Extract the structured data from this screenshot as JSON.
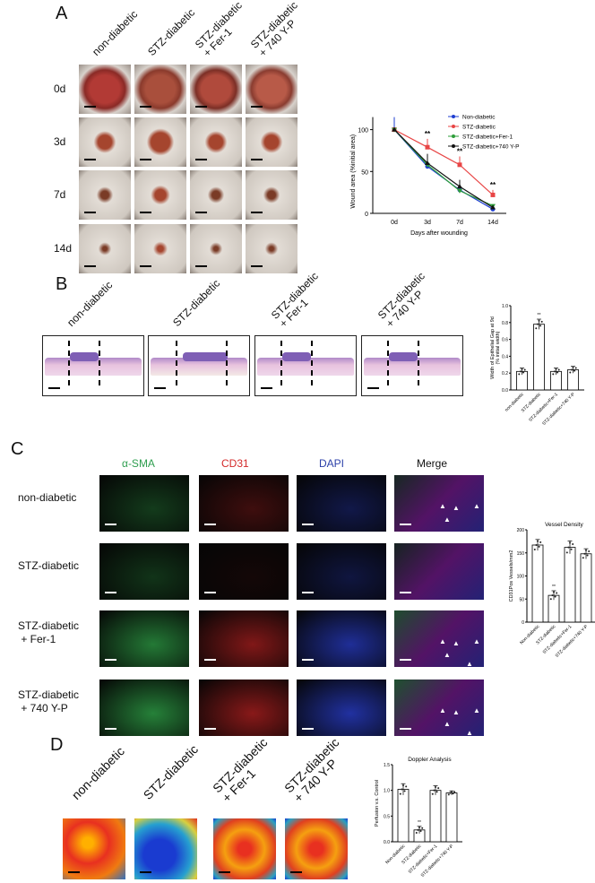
{
  "panels": {
    "A": {
      "label": "A",
      "columns": [
        "non-diabetic",
        "STZ-diabetic",
        "STZ-diabetic\n+ Fer-1",
        "STZ-diabetic\n+ 740 Y-P"
      ],
      "rows": [
        "0d",
        "3d",
        "7d",
        "14d"
      ]
    },
    "B": {
      "label": "B",
      "columns": [
        "non-diabetic",
        "STZ-diabetic",
        "STZ-diabetic\n+ Fer-1",
        "STZ-diabetic\n+ 740 Y-P"
      ]
    },
    "C": {
      "label": "C",
      "channels": [
        {
          "name": "α-SMA",
          "color": "#2e9e4f"
        },
        {
          "name": "CD31",
          "color": "#d42a2a"
        },
        {
          "name": "DAPI",
          "color": "#2b3fa8"
        },
        {
          "name": "Merge",
          "color": "#111111"
        }
      ],
      "rows": [
        "non-diabetic",
        "STZ-diabetic",
        "STZ-diabetic\n + Fer-1",
        "STZ-diabetic\n + 740 Y-P"
      ]
    },
    "D": {
      "label": "D",
      "columns": [
        "non-diabetic",
        "STZ-diabetic",
        "STZ-diabetic\n+ Fer-1",
        "STZ-diabetic\n+ 740 Y-P"
      ]
    }
  },
  "chart_data": [
    {
      "id": "A",
      "type": "line",
      "title": "",
      "xlabel": "Days after wounding",
      "ylabel": "Wound area (%initial area)",
      "categories": [
        "0d",
        "3d",
        "7d",
        "14d"
      ],
      "ylim": [
        0,
        115
      ],
      "yticks": [
        0,
        50,
        100
      ],
      "legend": "top-right",
      "annotations": [
        "**",
        "**",
        "**"
      ],
      "series": [
        {
          "name": "Non-diabetic",
          "color": "#1f3fd1",
          "marker": "circle",
          "values": [
            100,
            56,
            28,
            5
          ],
          "err": [
            15,
            10,
            4,
            2
          ]
        },
        {
          "name": "STZ-diabetic",
          "color": "#e84545",
          "marker": "square",
          "values": [
            100,
            79,
            58,
            22
          ],
          "err": [
            0,
            10,
            10,
            6
          ]
        },
        {
          "name": "STZ-diabetic+Fer-1",
          "color": "#2e9e3a",
          "marker": "triangle-down",
          "values": [
            100,
            58,
            27,
            9
          ],
          "err": [
            0,
            12,
            6,
            2
          ]
        },
        {
          "name": "STZ-diabetic+740 Y-P",
          "color": "#111111",
          "marker": "triangle-up",
          "values": [
            100,
            60,
            32,
            7
          ],
          "err": [
            0,
            11,
            8,
            2
          ]
        }
      ]
    },
    {
      "id": "B",
      "type": "bar",
      "title": "",
      "ylabel": "Width of Epithelial Gap at 9d\n(% initial width)",
      "categories": [
        "non-diabetic",
        "STZ-diabetic",
        "STZ-diabetic+Fer-1",
        "STZ-diabetic+740 Y-P"
      ],
      "values": [
        0.22,
        0.78,
        0.22,
        0.24
      ],
      "err": [
        0.04,
        0.06,
        0.04,
        0.04
      ],
      "ylim": [
        0,
        1.0
      ],
      "yticks": [
        "0.0",
        "0.2",
        "0.4",
        "0.6",
        "0.8",
        "1.0"
      ],
      "annotations": [
        "",
        "**",
        "",
        ""
      ]
    },
    {
      "id": "C",
      "type": "bar",
      "title": "Vessel Density",
      "ylabel": "CD31Pos Vessels/mm2",
      "categories": [
        "Non-diabetic",
        "STZ-diabetic",
        "STZ-diabetic+Fer-1",
        "STZ-diabetic+740 Y-P"
      ],
      "values": [
        167,
        58,
        162,
        148
      ],
      "err": [
        12,
        10,
        14,
        11
      ],
      "ylim": [
        0,
        200
      ],
      "yticks": [
        "0",
        "50",
        "100",
        "150",
        "200"
      ],
      "annotations": [
        "",
        "**",
        "",
        ""
      ]
    },
    {
      "id": "D",
      "type": "bar",
      "title": "Doppler Analysis",
      "ylabel": "Perfusion v.s. Control",
      "categories": [
        "Non-diabetic",
        "STZ-diabetic",
        "STZ-diabetic+Fer-1",
        "STZ-diabetic+740 Y-P"
      ],
      "values": [
        1.02,
        0.23,
        1.0,
        0.95
      ],
      "err": [
        0.11,
        0.07,
        0.09,
        0.04
      ],
      "ylim": [
        0,
        1.5
      ],
      "yticks": [
        "0.0",
        "0.5",
        "1.0",
        "1.5"
      ],
      "annotations": [
        "",
        "**",
        "",
        ""
      ]
    }
  ]
}
